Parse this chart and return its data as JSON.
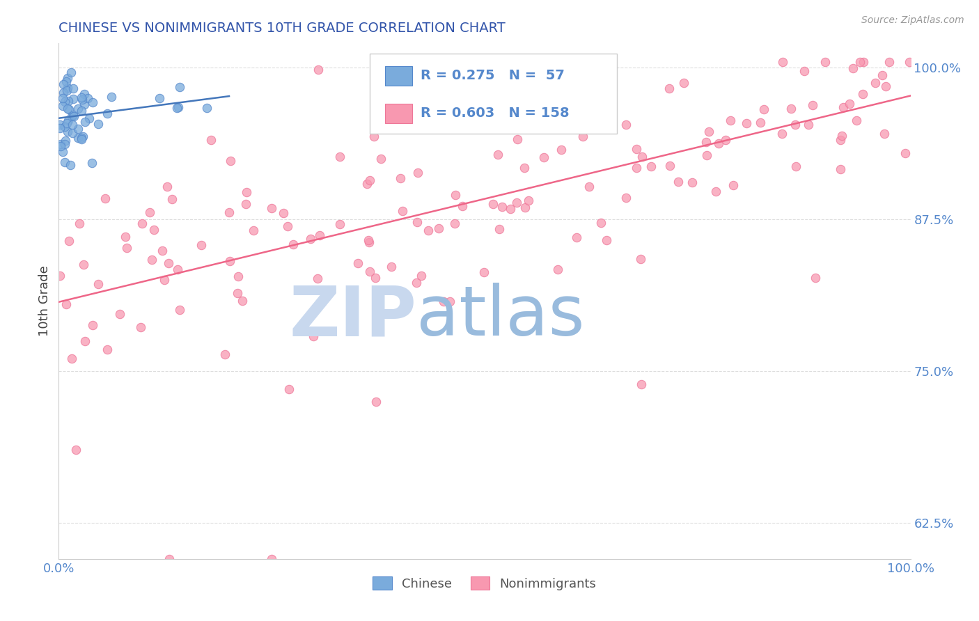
{
  "title": "CHINESE VS NONIMMIGRANTS 10TH GRADE CORRELATION CHART",
  "source_text": "Source: ZipAtlas.com",
  "ylabel": "10th Grade",
  "x_tick_labels": [
    "0.0%",
    "100.0%"
  ],
  "y_tick_labels": [
    "62.5%",
    "75.0%",
    "87.5%",
    "100.0%"
  ],
  "y_tick_values": [
    0.625,
    0.75,
    0.875,
    1.0
  ],
  "xlim": [
    0.0,
    1.0
  ],
  "ylim": [
    0.595,
    1.02
  ],
  "legend_r1": "R = 0.275",
  "legend_n1": "N =  57",
  "legend_r2": "R = 0.603",
  "legend_n2": "N = 158",
  "blue_color": "#7aabdc",
  "pink_color": "#f898b0",
  "blue_edge": "#5588cc",
  "pink_edge": "#ee7799",
  "trendline_blue": "#4477bb",
  "trendline_pink": "#ee6688",
  "title_color": "#3355aa",
  "source_color": "#999999",
  "axis_label_color": "#444444",
  "tick_color": "#5588cc",
  "watermark_zip_color": "#c8d8ee",
  "watermark_atlas_color": "#99bbdd",
  "grid_color": "#dddddd",
  "legend_border_color": "#cccccc",
  "bottom_legend_label_color": "#555555"
}
